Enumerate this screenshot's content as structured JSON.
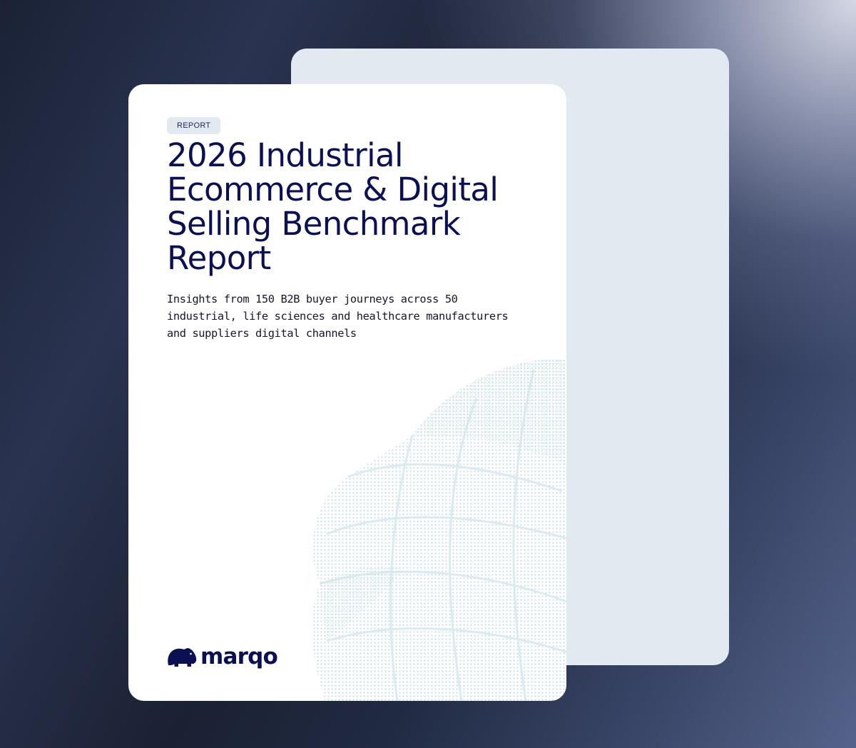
{
  "report": {
    "tag": "REPORT",
    "title": "2026 Industrial Ecommerce & Digital Selling Benchmark Report",
    "description": "Insights from 150 B2B buyer journeys across 50 industrial, life sciences and healthcare manufacturers and suppliers digital channels"
  },
  "brand": {
    "name": "marqo",
    "logo_icon": "hippo-icon"
  },
  "colors": {
    "title_navy": "#0b0f54",
    "card_back": "#e2e9f1",
    "card_front": "#ffffff",
    "globe_dots": "#c9dfe6"
  }
}
